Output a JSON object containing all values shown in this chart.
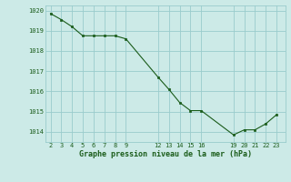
{
  "x": [
    2,
    3,
    4,
    5,
    6,
    7,
    8,
    9,
    12,
    13,
    14,
    15,
    16,
    19,
    20,
    21,
    22,
    23
  ],
  "y": [
    1019.85,
    1019.55,
    1019.2,
    1018.75,
    1018.75,
    1018.75,
    1018.75,
    1018.6,
    1016.7,
    1016.1,
    1015.45,
    1015.05,
    1015.05,
    1013.85,
    1014.1,
    1014.1,
    1014.4,
    1014.85
  ],
  "line_color": "#1a5c1a",
  "marker_color": "#1a5c1a",
  "bg_color": "#cceae7",
  "grid_color": "#99cccc",
  "xlabel": "Graphe pression niveau de la mer (hPa)",
  "xlabel_color": "#1a5c1a",
  "tick_color": "#1a5c1a",
  "ylim": [
    1013.5,
    1020.25
  ],
  "yticks": [
    1014,
    1015,
    1016,
    1017,
    1018,
    1019,
    1020
  ],
  "xticks": [
    2,
    3,
    4,
    5,
    6,
    7,
    8,
    9,
    12,
    13,
    14,
    15,
    16,
    19,
    20,
    21,
    22,
    23
  ],
  "xlim": [
    1.5,
    23.8
  ]
}
